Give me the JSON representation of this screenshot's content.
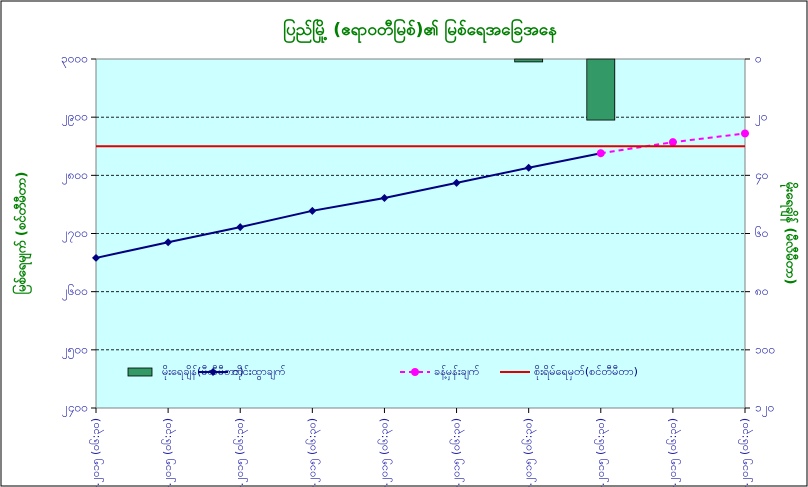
{
  "chart_data": {
    "type": "combo",
    "title": "ပြည်မြို့ (ဧရာဝတီမြစ်)၏ မြစ်ရေအခြေအနေ",
    "y_label": "မြစ်ရေမျက် (စင်တီမီတာ)",
    "y2_label": "မိုးရေချိန် (မီလီမီတာ)",
    "categories": [
      "၃.၇.၂၀၁၅ (၀၆:၃၀)",
      "၄.၇.၂၀၁၅ (၀၆:၃၀)",
      "၅.၇.၂၀၁၅ (၀၆:၃၀)",
      "၆.၇.၂၀၁၅ (၀၆:၃၀)",
      "၇.၇.၂၀၁၅ (၀၆:၃၀)",
      "၈.၇.၂၀၁၅ (၀၆:၃၀)",
      "၉.၇.၂၀၁၅ (၀၆:၃၀)",
      "၁၀.၇.၂၀၁၅ (၀၆:၃၀)",
      "၁၁.၇.၂၀၁၅ (၀၆:၃၀)",
      "၁၂.၇.၂၀၁၅ (၀၆:၃၀)"
    ],
    "ylim": [
      2400,
      3000
    ],
    "yticks": [
      {
        "value": 2400,
        "label": "၂၄၀၀"
      },
      {
        "value": 2500,
        "label": "၂၅၀၀"
      },
      {
        "value": 2600,
        "label": "၂၆၀၀"
      },
      {
        "value": 2700,
        "label": "၂၇၀၀"
      },
      {
        "value": 2800,
        "label": "၂၈၀၀"
      },
      {
        "value": 2900,
        "label": "၂၉၀၀"
      },
      {
        "value": 3000,
        "label": "၃၀၀၀"
      }
    ],
    "y2lim": [
      120,
      0
    ],
    "y2ticks": [
      {
        "value": 0,
        "label": "၀"
      },
      {
        "value": 20,
        "label": "၂၀"
      },
      {
        "value": 40,
        "label": "၄၀"
      },
      {
        "value": 60,
        "label": "၆၀"
      },
      {
        "value": 80,
        "label": "၈၀"
      },
      {
        "value": 100,
        "label": "၁၀၀"
      },
      {
        "value": 120,
        "label": "၁၂၀"
      }
    ],
    "grid": true,
    "legend": "bottom",
    "series": [
      {
        "name": "မိုးရေချိန်(မီလီမီတာ)",
        "type": "bar",
        "axis": "y2",
        "color": "#339966",
        "values": [
          null,
          null,
          null,
          null,
          null,
          null,
          1,
          21,
          null,
          null
        ]
      },
      {
        "name": "တိုင်းထွာချက်",
        "type": "line",
        "marker": "diamond",
        "color": "#000080",
        "values": [
          2658,
          2685,
          2711,
          2739,
          2761,
          2787,
          2813,
          2838,
          null,
          null
        ]
      },
      {
        "name": "ခန့်မှန်းချက်",
        "type": "line",
        "marker": "circle",
        "dashed": true,
        "color": "#ff00ff",
        "values": [
          null,
          null,
          null,
          null,
          null,
          null,
          null,
          2838,
          2857,
          2872
        ]
      },
      {
        "name": "စိုးရိမ်ရေမှတ်(စင်တီမီတာ)",
        "type": "line",
        "color": "#e00000",
        "values": [
          2850,
          2850,
          2850,
          2850,
          2850,
          2850,
          2850,
          2850,
          2850,
          2850
        ]
      }
    ]
  }
}
